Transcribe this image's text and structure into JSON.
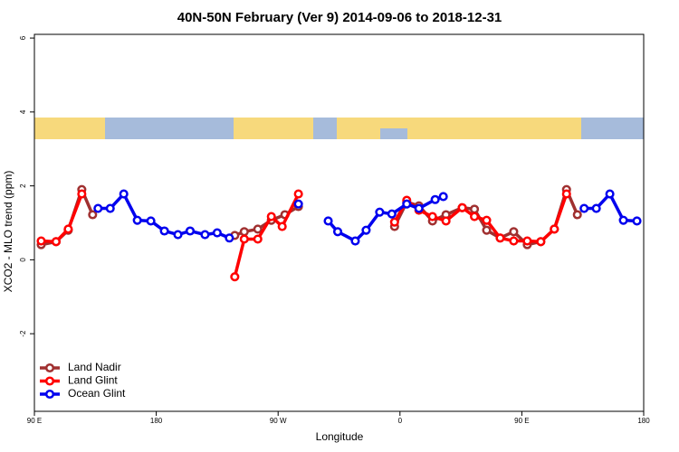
{
  "chart_data": {
    "type": "line",
    "title": "40N-50N February (Ver 9)   2014-09-06 to 2018-12-31",
    "x_label": "Longitude",
    "y_label": "XCO2 - MLO trend (ppm)",
    "xlim": [
      90,
      540
    ],
    "ylim": [
      -4.1,
      6.1
    ],
    "xticks": [
      {
        "value": 90,
        "label": "90 E"
      },
      180,
      {
        "value": 270,
        "label": "90 W"
      },
      {
        "value": 360,
        "label": "0"
      },
      {
        "value": 450,
        "label": "90 E"
      },
      {
        "value": 540,
        "label": "180"
      }
    ],
    "yticks": [
      -2,
      0,
      2,
      4,
      6
    ],
    "legend": "bottomleft",
    "series": [
      {
        "name": "Land Nadir",
        "color": "#a03030",
        "x": [
          95,
          106,
          115,
          125,
          133,
          null,
          238,
          245,
          255,
          265,
          275,
          285,
          null,
          356,
          365,
          374,
          384,
          394,
          406,
          415,
          424,
          434,
          444,
          454,
          464,
          474,
          483,
          491
        ],
        "values": [
          0.41,
          0.49,
          0.8,
          1.9,
          1.22,
          null,
          0.66,
          0.76,
          0.83,
          1.07,
          1.22,
          1.44,
          null,
          0.9,
          1.56,
          1.46,
          1.05,
          1.22,
          1.41,
          1.37,
          0.8,
          0.59,
          0.76,
          0.41,
          0.49,
          0.83,
          1.9,
          1.22
        ]
      },
      {
        "name": "Land Glint",
        "color": "#ff0000",
        "x": [
          95,
          106,
          115,
          125,
          null,
          238,
          245,
          255,
          265,
          273,
          285,
          null,
          356,
          365,
          374,
          384,
          394,
          406,
          415,
          424,
          434,
          444,
          454,
          464,
          474,
          483
        ],
        "values": [
          0.51,
          0.49,
          0.83,
          1.78,
          null,
          -0.46,
          0.56,
          0.56,
          1.17,
          0.9,
          1.78,
          null,
          1.02,
          1.61,
          1.34,
          1.17,
          1.05,
          1.41,
          1.17,
          1.07,
          0.59,
          0.51,
          0.51,
          0.49,
          0.83,
          1.78
        ]
      },
      {
        "name": "Ocean Glint",
        "color": "#0000ee",
        "x": [
          137,
          146,
          156,
          166,
          176,
          186,
          196,
          205,
          216,
          225,
          234,
          null,
          285,
          null,
          307,
          314,
          327,
          335,
          345,
          354,
          365,
          374,
          386,
          392,
          null,
          496,
          505,
          515,
          525,
          535
        ],
        "values": [
          1.39,
          1.39,
          1.78,
          1.07,
          1.05,
          0.78,
          0.68,
          0.78,
          0.68,
          0.73,
          0.59,
          null,
          1.51,
          null,
          1.05,
          0.76,
          0.51,
          0.8,
          1.29,
          1.24,
          1.51,
          1.39,
          1.63,
          1.71,
          null,
          1.39,
          1.39,
          1.78,
          1.07,
          1.05
        ]
      }
    ]
  }
}
